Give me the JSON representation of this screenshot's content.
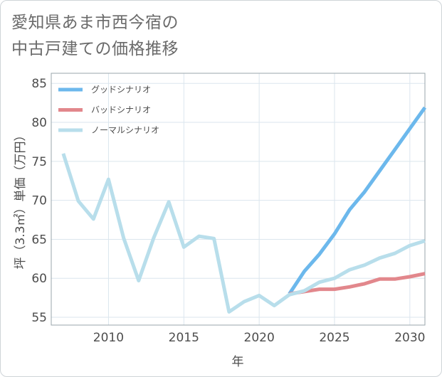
{
  "title_lines": [
    "愛知県あま市西今宿の",
    "中古戸建ての価格推移"
  ],
  "chart_data": {
    "type": "line",
    "title": "愛知県あま市西今宿の中古戸建ての価格推移",
    "xlabel": "年",
    "ylabel": "坪（3.3㎡）単価（万円）",
    "xlim": [
      2006.2,
      2031
    ],
    "ylim": [
      54,
      86.3
    ],
    "xticks": [
      2010,
      2015,
      2020,
      2025,
      2030
    ],
    "yticks": [
      55,
      60,
      65,
      70,
      75,
      80,
      85
    ],
    "grid": true,
    "legend_position": "top-left",
    "series": [
      {
        "name": "グッドシナリオ",
        "color": "#6cb8ec",
        "x": [
          2022,
          2023,
          2024,
          2025,
          2026,
          2027,
          2028,
          2029,
          2030,
          2031
        ],
        "values": [
          58.0,
          60.9,
          63.1,
          65.7,
          68.8,
          71.1,
          73.8,
          76.5,
          79.2,
          81.9
        ]
      },
      {
        "name": "バッドシナリオ",
        "color": "#e2878c",
        "x": [
          2022,
          2023,
          2024,
          2025,
          2026,
          2027,
          2028,
          2029,
          2030,
          2031
        ],
        "values": [
          58.0,
          58.3,
          58.6,
          58.6,
          58.9,
          59.3,
          59.9,
          59.9,
          60.2,
          60.6
        ]
      },
      {
        "name": "ノーマルシナリオ",
        "color": "#b8deeb",
        "x": [
          2007,
          2008,
          2009,
          2010,
          2011,
          2012,
          2013,
          2014,
          2015,
          2016,
          2017,
          2018,
          2019,
          2020,
          2021,
          2022,
          2023,
          2024,
          2025,
          2026,
          2027,
          2028,
          2029,
          2030,
          2031
        ],
        "values": [
          76.0,
          69.9,
          67.6,
          72.7,
          65.2,
          59.7,
          65.2,
          69.8,
          64.0,
          65.4,
          65.1,
          55.7,
          57.0,
          57.8,
          56.5,
          57.9,
          58.4,
          59.5,
          60.0,
          61.1,
          61.7,
          62.6,
          63.2,
          64.2,
          64.8
        ]
      }
    ]
  }
}
